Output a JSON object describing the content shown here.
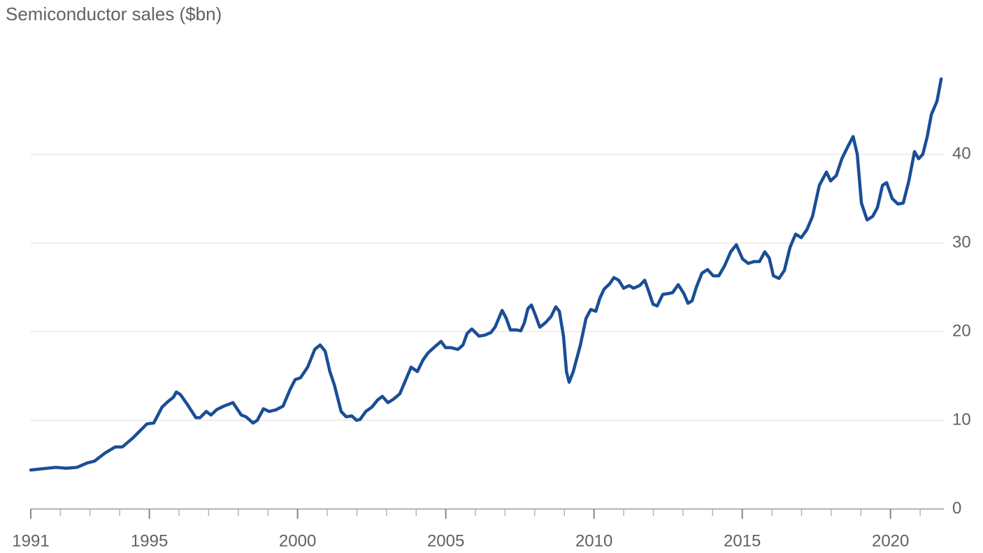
{
  "chart_data": {
    "type": "line",
    "title": "Semiconductor sales ($bn)",
    "x": [
      1991.0,
      1991.85,
      1992.2,
      1992.56,
      1992.91,
      1993.15,
      1993.5,
      1993.85,
      1994.09,
      1994.44,
      1994.68,
      1994.92,
      1995.15,
      1995.43,
      1995.62,
      1995.81,
      1995.91,
      1996.05,
      1996.28,
      1996.57,
      1996.71,
      1996.92,
      1997.08,
      1997.27,
      1997.51,
      1997.82,
      1998.1,
      1998.26,
      1998.5,
      1998.64,
      1998.85,
      1999.04,
      1999.28,
      1999.51,
      1999.75,
      1999.92,
      2000.1,
      2000.34,
      2000.58,
      2000.76,
      2000.93,
      2001.09,
      2001.24,
      2001.47,
      2001.64,
      2001.83,
      2001.99,
      2002.11,
      2002.3,
      2002.51,
      2002.7,
      2002.86,
      2003.05,
      2003.24,
      2003.45,
      2003.64,
      2003.83,
      2004.04,
      2004.23,
      2004.4,
      2004.63,
      2004.84,
      2004.99,
      2005.17,
      2005.41,
      2005.58,
      2005.72,
      2005.88,
      2006.12,
      2006.31,
      2006.52,
      2006.66,
      2006.8,
      2006.9,
      2007.04,
      2007.18,
      2007.37,
      2007.53,
      2007.65,
      2007.77,
      2007.89,
      2008.03,
      2008.17,
      2008.36,
      2008.55,
      2008.71,
      2008.83,
      2008.97,
      2009.07,
      2009.16,
      2009.3,
      2009.54,
      2009.73,
      2009.89,
      2010.06,
      2010.2,
      2010.34,
      2010.53,
      2010.67,
      2010.83,
      2011.0,
      2011.19,
      2011.33,
      2011.54,
      2011.71,
      2011.85,
      2011.99,
      2012.13,
      2012.32,
      2012.51,
      2012.65,
      2012.84,
      2013.03,
      2013.17,
      2013.31,
      2013.45,
      2013.64,
      2013.83,
      2014.02,
      2014.21,
      2014.4,
      2014.61,
      2014.8,
      2015.01,
      2015.2,
      2015.39,
      2015.58,
      2015.76,
      2015.91,
      2016.05,
      2016.24,
      2016.42,
      2016.61,
      2016.8,
      2016.99,
      2017.18,
      2017.37,
      2017.6,
      2017.84,
      2017.98,
      2018.17,
      2018.36,
      2018.55,
      2018.74,
      2018.88,
      2019.02,
      2019.21,
      2019.4,
      2019.56,
      2019.73,
      2019.87,
      2020.06,
      2020.25,
      2020.43,
      2020.62,
      2020.81,
      2020.95,
      2021.09,
      2021.24,
      2021.38,
      2021.57,
      2021.71
    ],
    "series": [
      {
        "name": "Semiconductor sales",
        "color": "#1a4e96",
        "values": [
          4.4,
          4.7,
          4.6,
          4.7,
          5.2,
          5.4,
          6.3,
          7.0,
          7.0,
          8.0,
          8.8,
          9.6,
          9.7,
          11.5,
          12.1,
          12.6,
          13.2,
          12.9,
          11.8,
          10.3,
          10.3,
          11.0,
          10.6,
          11.2,
          11.6,
          12.0,
          10.6,
          10.4,
          9.7,
          10.0,
          11.3,
          11.0,
          11.2,
          11.6,
          13.5,
          14.6,
          14.8,
          16.0,
          18.0,
          18.5,
          17.8,
          15.5,
          14.0,
          11.0,
          10.4,
          10.5,
          10.0,
          10.1,
          11.0,
          11.5,
          12.3,
          12.7,
          12.0,
          12.4,
          13.0,
          14.5,
          16.0,
          15.5,
          16.8,
          17.6,
          18.3,
          18.9,
          18.2,
          18.2,
          18.0,
          18.5,
          19.8,
          20.3,
          19.5,
          19.6,
          19.9,
          20.5,
          21.6,
          22.4,
          21.5,
          20.2,
          20.2,
          20.1,
          21.0,
          22.6,
          23.0,
          21.8,
          20.5,
          21.0,
          21.7,
          22.8,
          22.3,
          19.5,
          15.5,
          14.3,
          15.5,
          18.5,
          21.5,
          22.5,
          22.3,
          23.8,
          24.8,
          25.4,
          26.1,
          25.8,
          24.9,
          25.2,
          24.9,
          25.2,
          25.8,
          24.5,
          23.1,
          22.9,
          24.2,
          24.3,
          24.4,
          25.3,
          24.3,
          23.2,
          23.5,
          25.0,
          26.6,
          27.0,
          26.3,
          26.3,
          27.4,
          29.0,
          29.8,
          28.2,
          27.7,
          27.9,
          27.9,
          29.0,
          28.3,
          26.3,
          26.0,
          26.9,
          29.5,
          31.0,
          30.6,
          31.5,
          33.0,
          36.5,
          38.0,
          37.0,
          37.6,
          39.5,
          40.8,
          42.0,
          40.0,
          34.5,
          32.6,
          33.0,
          34.0,
          36.5,
          36.8,
          35.0,
          34.4,
          34.5,
          37.0,
          40.3,
          39.5,
          40.0,
          42.0,
          44.5,
          46.0,
          48.5
        ]
      }
    ],
    "xlim": [
      1991,
      2021.8
    ],
    "xticks": [
      1991,
      1995,
      2000,
      2005,
      2010,
      2015,
      2020
    ],
    "ylim": [
      0,
      50
    ],
    "yticks": [
      0,
      10,
      20,
      30,
      40
    ],
    "y_axis_side": "right",
    "grid": true
  }
}
